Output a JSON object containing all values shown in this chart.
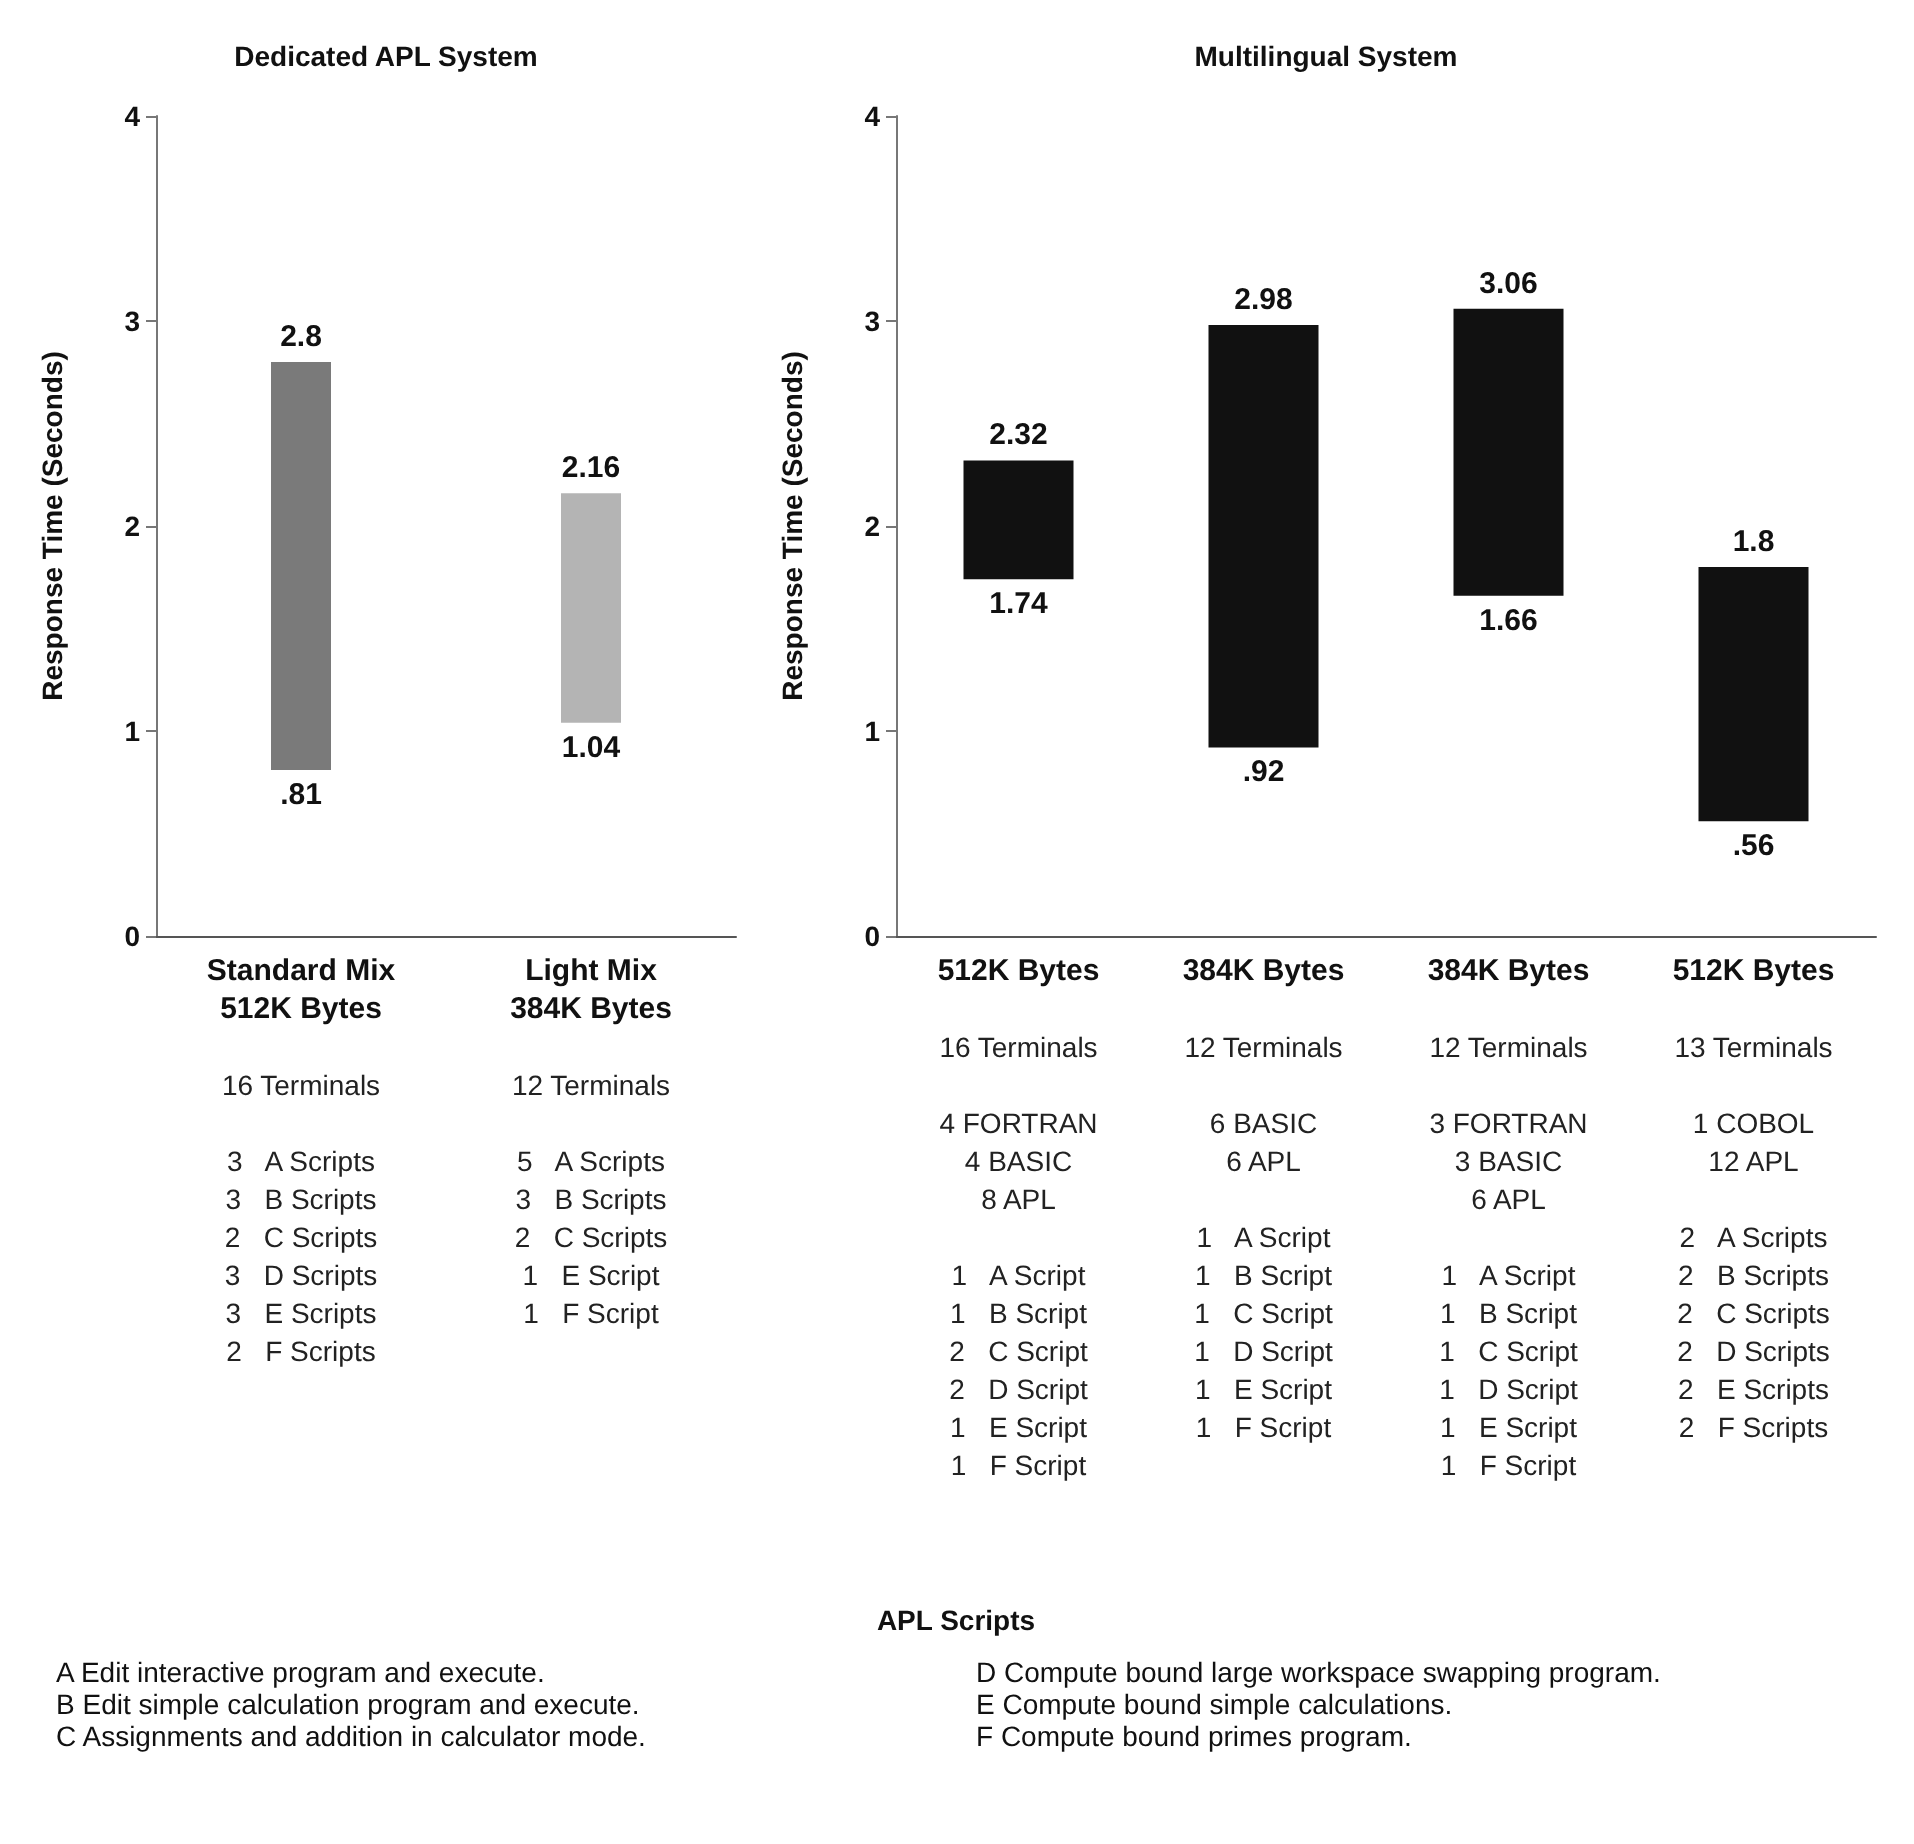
{
  "chart_data": [
    {
      "type": "bar",
      "title": "Dedicated APL System",
      "ylabel": "Response Time (Seconds)",
      "categories": [
        "Standard Mix\n512K Bytes\n\n16 Terminals\n\n3   A Scripts\n3   B Scripts\n2   C Scripts\n3   D Scripts\n3   E Scripts\n2   F Scripts",
        "Light Mix\n384K Bytes\n\n12 Terminals\n\n5   A Scripts\n3   B Scripts\n2   C Scripts\n1   E Script\n1   F Script"
      ],
      "base": [
        0.81,
        1.04
      ],
      "values": [
        1.99,
        1.12
      ],
      "colors": [
        "#7a7a7a",
        "#b4b4b4"
      ],
      "ylim": [
        0,
        4
      ],
      "yticks": [
        0,
        1,
        2,
        3,
        4
      ],
      "annotations": [
        {
          "text": "2.8",
          "x": "Standard Mix\n512K Bytes\n\n16 Terminals\n\n3   A Scripts\n3   B Scripts\n2   C Scripts\n3   D Scripts\n3   E Scripts\n2   F Scripts",
          "y": 2.8
        },
        {
          "text": ".81",
          "x": "Standard Mix\n512K Bytes\n\n16 Terminals\n\n3   A Scripts\n3   B Scripts\n2   C Scripts\n3   D Scripts\n3   E Scripts\n2   F Scripts",
          "y": 0.81
        },
        {
          "text": "2.16",
          "x": "Light Mix\n384K Bytes\n\n12 Terminals\n\n5   A Scripts\n3   B Scripts\n2   C Scripts\n1   E Script\n1   F Script",
          "y": 2.16
        },
        {
          "text": "1.04",
          "x": "Light Mix\n384K Bytes\n\n12 Terminals\n\n5   A Scripts\n3   B Scripts\n2   C Scripts\n1   E Script\n1   F Script",
          "y": 1.04
        }
      ]
    },
    {
      "type": "bar",
      "title": "Multilingual System",
      "ylabel": "Response Time (Seconds)",
      "categories": [
        "512K Bytes\n\n16 Terminals\n\n4 FORTRAN\n4 BASIC\n8 APL\n\n1   A Script\n1   B Script\n2   C Script\n2   D Script\n1   E Script\n1   F Script",
        "384K Bytes\n\n12 Terminals\n\n6 BASIC\n6 APL\n\n1   A Script\n1   B Script\n1   C Script\n1   D Script\n1   E Script\n1   F Script",
        "384K Bytes\n\n12 Terminals\n\n3 FORTRAN\n3 BASIC\n6 APL\n\n1   A Script\n1   B Script\n1   C Script\n1   D Script\n1   E Script\n1   F Script",
        "512K Bytes\n\n13 Terminals\n\n1 COBOL\n12 APL\n\n2   A Scripts\n2   B Scripts\n2   C Scripts\n2   D Scripts\n2   E Scripts\n2   F Scripts"
      ],
      "base": [
        1.74,
        0.92,
        1.66,
        0.56
      ],
      "values": [
        0.58,
        2.06,
        1.4,
        1.24
      ],
      "colors": [
        "#111111",
        "#111111",
        "#111111",
        "#111111"
      ],
      "ylim": [
        0,
        4
      ],
      "yticks": [
        0,
        1,
        2,
        3,
        4
      ],
      "annotations": [
        {
          "text": "2.32",
          "x": "512K Bytes\n\n16 Terminals\n\n4 FORTRAN\n4 BASIC\n8 APL\n\n1   A Script\n1   B Script\n2   C Script\n2   D Script\n1   E Script\n1   F Script",
          "y": 2.32
        },
        {
          "text": "1.74",
          "x": "512K Bytes\n\n16 Terminals\n\n4 FORTRAN\n4 BASIC\n8 APL\n\n1   A Script\n1   B Script\n2   C Script\n2   D Script\n1   E Script\n1   F Script",
          "y": 1.74
        },
        {
          "text": "2.98",
          "x": "384K Bytes\n\n12 Terminals\n\n6 BASIC\n6 APL\n\n1   A Script\n1   B Script\n1   C Script\n1   D Script\n1   E Script\n1   F Script",
          "y": 2.98
        },
        {
          "text": ".92",
          "x": "384K Bytes\n\n12 Terminals\n\n6 BASIC\n6 APL\n\n1   A Script\n1   B Script\n1   C Script\n1   D Script\n1   E Script\n1   F Script",
          "y": 0.92
        },
        {
          "text": "3.06",
          "x": "384K Bytes\n\n12 Terminals\n\n3 FORTRAN\n3 BASIC\n6 APL\n\n1   A Script\n1   B Script\n1   C Script\n1   D Script\n1   E Script\n1   F Script",
          "y": 3.06
        },
        {
          "text": "1.66",
          "x": "384K Bytes\n\n12 Terminals\n\n3 FORTRAN\n3 BASIC\n6 APL\n\n1   A Script\n1   B Script\n1   C Script\n1   D Script\n1   E Script\n1   F Script",
          "y": 1.66
        },
        {
          "text": "1.8",
          "x": "512K Bytes\n\n13 Terminals\n\n1 COBOL\n12 APL\n\n2   A Scripts\n2   B Scripts\n2   C Scripts\n2   D Scripts\n2   E Scripts\n2   F Scripts",
          "y": 1.8
        },
        {
          "text": ".56",
          "x": "512K Bytes\n\n13 Terminals\n\n1 COBOL\n12 APL\n\n2   A Scripts\n2   B Scripts\n2   C Scripts\n2   D Scripts\n2   E Scripts\n2   F Scripts",
          "y": 0.56
        }
      ]
    },
    {
      "type": "other",
      "title": "APL Scripts",
      "annotations": [
        "A  Edit interactive program and execute.",
        "B  Edit simple calculation program and execute.",
        "C  Assignments and addition in calculator mode.",
        "D  Compute bound large workspace swapping program.",
        "E  Compute bound simple calculations.",
        "F  Compute bound primes program."
      ]
    }
  ]
}
